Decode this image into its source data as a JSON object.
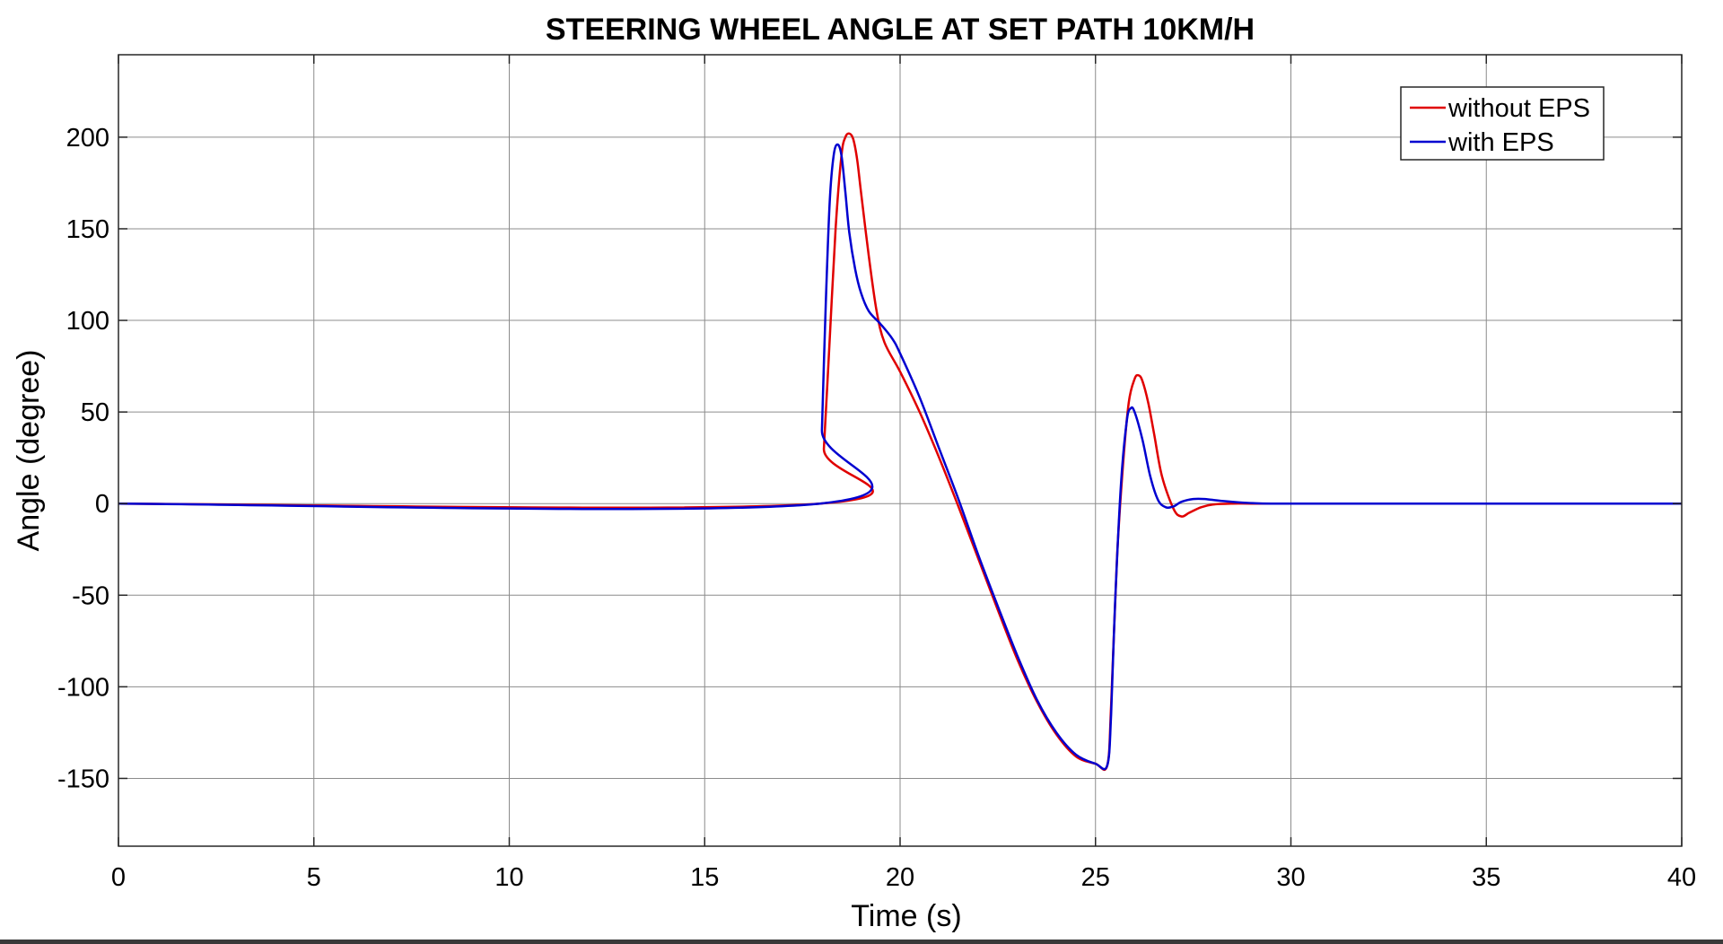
{
  "chart_data": {
    "type": "line",
    "title": "STEERING WHEEL ANGLE AT SET PATH 10KM/H",
    "xlabel": "Time (s)",
    "ylabel": "Angle (degree)",
    "xlim": [
      0,
      40
    ],
    "ylim": [
      -187,
      245
    ],
    "xticks": [
      0,
      5,
      10,
      15,
      20,
      25,
      30,
      35,
      40
    ],
    "yticks": [
      -150,
      -100,
      -50,
      0,
      50,
      100,
      150,
      200
    ],
    "grid": true,
    "legend_position": "top-right",
    "series": [
      {
        "name": "without EPS",
        "color": "#e00000",
        "x": [
          0,
          17.95,
          18.05,
          18.2,
          18.35,
          18.5,
          18.6,
          18.7,
          18.8,
          18.9,
          19.0,
          19.2,
          19.4,
          19.6,
          20.0,
          20.5,
          21.0,
          21.5,
          22.0,
          22.5,
          23.0,
          23.5,
          24.0,
          24.5,
          25.0,
          25.3,
          25.4,
          25.55,
          25.7,
          25.85,
          26.0,
          26.1,
          26.2,
          26.35,
          26.5,
          26.7,
          27.0,
          27.2,
          27.4,
          27.7,
          28.0,
          28.5,
          29.0,
          30.0,
          32.0,
          40.0
        ],
        "y": [
          0,
          0,
          30,
          90,
          150,
          190,
          200,
          202,
          199,
          188,
          170,
          135,
          105,
          88,
          72,
          50,
          25,
          -2,
          -30,
          -58,
          -85,
          -108,
          -126,
          -138,
          -142,
          -143,
          -110,
          -30,
          20,
          55,
          68,
          70,
          67,
          55,
          38,
          15,
          -3,
          -7,
          -5,
          -2,
          -0.5,
          0,
          0,
          0,
          0,
          0
        ]
      },
      {
        "name": "with EPS",
        "color": "#0000d0",
        "x": [
          0,
          17.95,
          18.0,
          18.1,
          18.2,
          18.3,
          18.4,
          18.5,
          18.6,
          18.7,
          18.85,
          19.0,
          19.2,
          19.5,
          19.8,
          20.0,
          20.5,
          21.0,
          21.5,
          22.0,
          22.5,
          23.0,
          23.5,
          24.0,
          24.5,
          25.0,
          25.3,
          25.4,
          25.5,
          25.65,
          25.8,
          25.9,
          26.0,
          26.2,
          26.4,
          26.6,
          26.8,
          27.0,
          27.2,
          27.5,
          27.8,
          28.2,
          28.8,
          29.5,
          31.0,
          40.0
        ],
        "y": [
          0,
          0,
          40,
          110,
          165,
          190,
          196,
          190,
          170,
          148,
          128,
          115,
          105,
          98,
          90,
          82,
          58,
          30,
          2,
          -28,
          -56,
          -83,
          -107,
          -125,
          -137,
          -142,
          -143,
          -115,
          -55,
          10,
          45,
          52,
          50,
          35,
          15,
          2,
          -2,
          -1.5,
          1,
          2.5,
          2.5,
          1.5,
          0.5,
          0,
          0,
          0
        ]
      }
    ]
  }
}
